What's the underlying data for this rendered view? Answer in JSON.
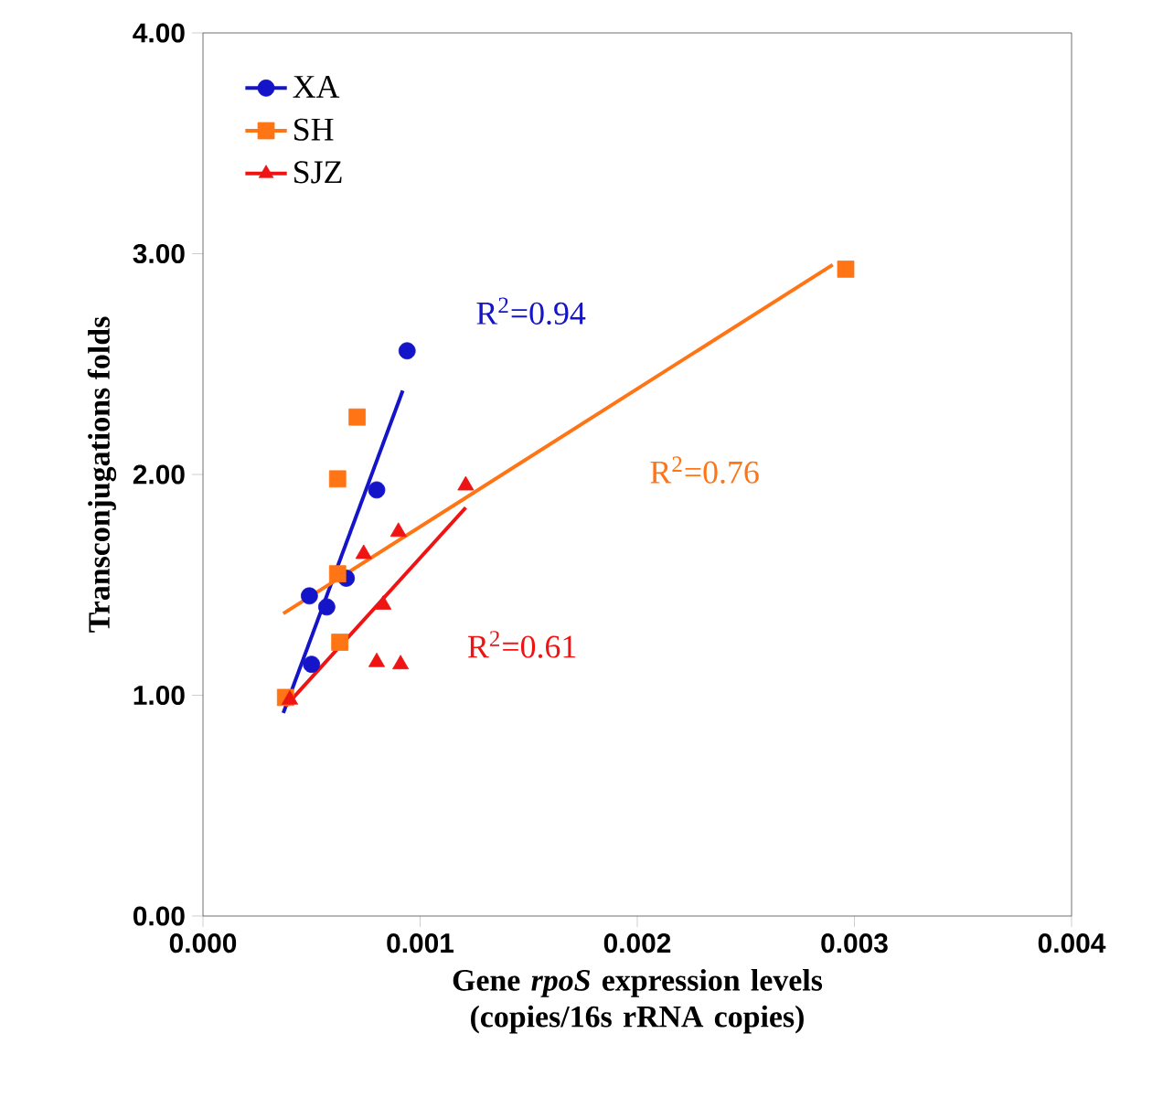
{
  "chart_data": {
    "type": "scatter",
    "xlabel": "Gene *rpoS* expression levels (copies/16s rRNA copies)",
    "ylabel": "Transconjugations folds",
    "xlim": [
      0,
      0.004
    ],
    "ylim": [
      0,
      4
    ],
    "xticks": [
      {
        "value": 0,
        "label": "0.000"
      },
      {
        "value": 0.001,
        "label": "0.001"
      },
      {
        "value": 0.002,
        "label": "0.002"
      },
      {
        "value": 0.003,
        "label": "0.003"
      },
      {
        "value": 0.004,
        "label": "0.004"
      }
    ],
    "yticks": [
      {
        "value": 0,
        "label": "0.00"
      },
      {
        "value": 1,
        "label": "1.00"
      },
      {
        "value": 2,
        "label": "2.00"
      },
      {
        "value": 3,
        "label": "3.00"
      },
      {
        "value": 4,
        "label": "4.00"
      }
    ],
    "legend": "top left",
    "series": [
      {
        "name": "XA",
        "color": "#1414c8",
        "marker": "circle",
        "x": [
          0.0005,
          0.00049,
          0.00057,
          0.00066,
          0.0008,
          0.00094
        ],
        "values": [
          1.14,
          1.45,
          1.4,
          1.53,
          1.93,
          2.56
        ]
      },
      {
        "name": "SH",
        "color": "#ff7414",
        "marker": "square",
        "x": [
          0.00038,
          0.00063,
          0.00062,
          0.00062,
          0.00071,
          0.00296
        ],
        "values": [
          0.99,
          1.24,
          1.55,
          1.98,
          2.26,
          2.93
        ]
      },
      {
        "name": "SJZ",
        "color": "#ee1414",
        "marker": "triangle",
        "x": [
          0.0004,
          0.0008,
          0.00091,
          0.00083,
          0.00074,
          0.0009,
          0.00121
        ],
        "values": [
          0.98,
          1.15,
          1.14,
          1.41,
          1.64,
          1.74,
          1.95
        ]
      },
      {
        "type": "line",
        "color": "#1414c8",
        "marker": "none",
        "x": [
          0.00037,
          0.00092
        ],
        "values": [
          0.92,
          2.38
        ]
      },
      {
        "type": "line",
        "color": "#ff7414",
        "marker": "none",
        "x": [
          0.00037,
          0.0029
        ],
        "values": [
          1.37,
          2.95
        ]
      },
      {
        "type": "line",
        "color": "#ee1414",
        "marker": "none",
        "x": [
          0.00038,
          0.00121
        ],
        "values": [
          0.95,
          1.85
        ]
      }
    ],
    "annotations": [
      "R$^{2}$=0.94",
      "R$^{2}$=0.76",
      "R$^{2}$=0.61"
    ]
  }
}
